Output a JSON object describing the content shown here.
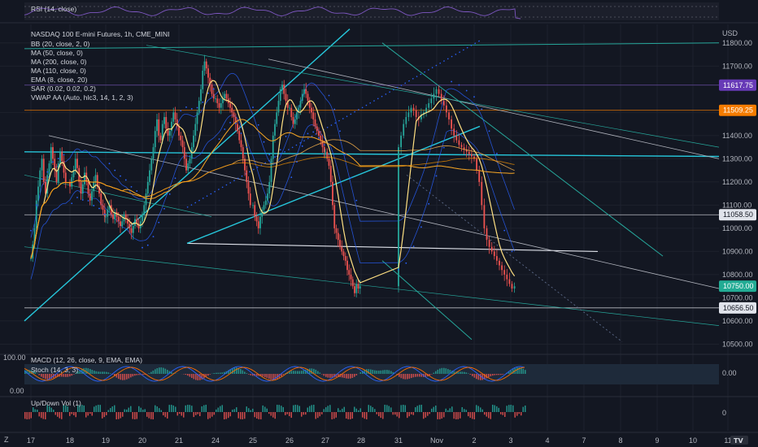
{
  "chart_data": {
    "type": "candlestick",
    "title": "NASDAQ 100 E-mini Futures, 1h, CME_MINI",
    "currency": "USD",
    "indicators": [
      "BB (20, close, 2, 0)",
      "MA (50, close, 0)",
      "MA (200, close, 0)",
      "MA (110, close, 0)",
      "EMA (8, close, 20)",
      "SAR (0.02, 0.02, 0.2)",
      "VWAP AA (Auto, hlc3, 14, 1, 2, 3)"
    ],
    "rsi_label": "RSI (14, close)",
    "macd_label": "MACD (12, 26, close, 9, EMA, EMA)",
    "stoch_label": "Stoch (14, 3, 3)",
    "vol_label": "Up/Down Vol (1)",
    "x_ticks": [
      "17",
      "18",
      "19",
      "20",
      "21",
      "24",
      "25",
      "26",
      "27",
      "28",
      "31",
      "Nov",
      "2",
      "3",
      "4",
      "7",
      "8",
      "9",
      "10",
      "11"
    ],
    "y_ticks": [
      "11800.00",
      "11700.00",
      "11500.00",
      "11400.00",
      "11300.00",
      "11200.00",
      "11100.00",
      "11000.00",
      "10900.00",
      "10800.00",
      "10700.00",
      "10600.00",
      "10500.00"
    ],
    "ylim": [
      10470,
      11880
    ],
    "price_badges": [
      {
        "value": "11617.75",
        "color": "#673ab7"
      },
      {
        "value": "11509.25",
        "color": "#f57c00"
      },
      {
        "value": "11058.50",
        "color": "#e0e3eb"
      },
      {
        "value": "10750.00",
        "color": "#22ab94"
      },
      {
        "value": "10656.50",
        "color": "#e0e3eb"
      }
    ],
    "horizontal_levels": [
      11617.75,
      11509.25,
      11058.5,
      10656.5
    ],
    "indicator_axis": {
      "macd_top": "100.00",
      "macd_bottom": "0.00",
      "macd_right": "0.00",
      "vol_right": "0"
    },
    "close_series": [
      {
        "d": 17,
        "c": [
          10870,
          10930,
          11000,
          11120,
          11180,
          11250,
          11300,
          11200,
          11150,
          11230,
          11280,
          11350,
          11300,
          11250,
          11200,
          11280,
          11330,
          11290,
          11240,
          11200
        ]
      },
      {
        "d": 18,
        "c": [
          11180,
          11220,
          11250,
          11300,
          11260,
          11200,
          11150,
          11190,
          11240,
          11200,
          11150,
          11120,
          11160,
          11200,
          11230,
          11180,
          11150,
          11100,
          11080,
          11050
        ]
      },
      {
        "d": 19,
        "c": [
          11050,
          11080,
          11100,
          11060,
          11040,
          11070,
          11050,
          11030,
          11010,
          11030,
          11060,
          11040,
          11020,
          11000,
          10980,
          11010,
          11040,
          11020,
          11000,
          11030
        ]
      },
      {
        "d": 20,
        "c": [
          11060,
          11100,
          11150,
          11200,
          11250,
          11300,
          11350,
          11420,
          11470,
          11400,
          11380,
          11450,
          11480,
          11430,
          11400,
          11420,
          11460,
          11500,
          11470,
          11440
        ]
      },
      {
        "d": 21,
        "c": [
          11400,
          11380,
          11350,
          11300,
          11250,
          11280,
          11300,
          11350,
          11400,
          11450,
          11500,
          11550,
          11600,
          11680,
          11720,
          11690,
          11650,
          11620,
          11580,
          11560
        ]
      },
      {
        "d": 24,
        "c": [
          11560,
          11540,
          11520,
          11540,
          11560,
          11580,
          11560,
          11540,
          11520,
          11500,
          11480,
          11450,
          11420,
          11380,
          11350,
          11300,
          11250,
          11200,
          11150,
          11100
        ]
      },
      {
        "d": 25,
        "c": [
          11100,
          11050,
          11030,
          11000,
          11050,
          11080,
          11100,
          11120,
          11150,
          11200,
          11300,
          11400,
          11450,
          11500,
          11550,
          11600,
          11620,
          11580,
          11550,
          11520
        ]
      },
      {
        "d": 26,
        "c": [
          11520,
          11480,
          11450,
          11470,
          11500,
          11520,
          11550,
          11580,
          11600,
          11580,
          11550,
          11520,
          11500,
          11470,
          11440,
          11420,
          11400,
          11380,
          11350,
          11330
        ]
      },
      {
        "d": 27,
        "c": [
          11330,
          11300,
          11270,
          11200,
          11100,
          11000,
          10980,
          10950,
          10920,
          10900,
          10880,
          10860,
          10820,
          10800,
          10780,
          10750,
          10720,
          10760,
          10740,
          10750
        ]
      }
    ]
  }
}
